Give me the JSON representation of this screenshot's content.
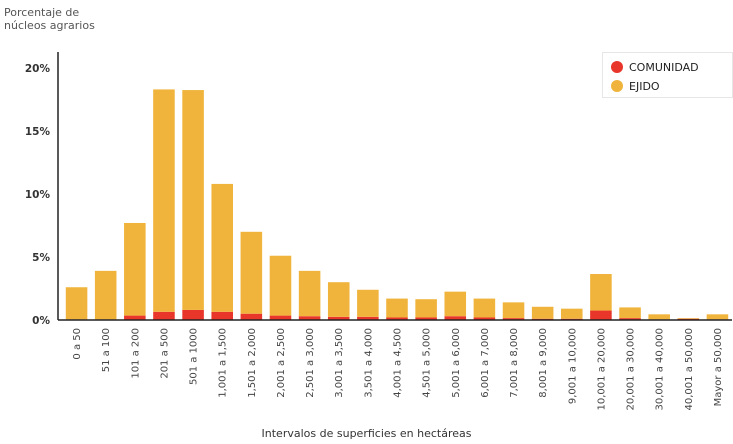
{
  "chart_data": {
    "type": "bar",
    "stacked": true,
    "ylabel": "Porcentaje de\nnúcleos agrarios",
    "xlabel": "Intervalos de superficies en hectáreas",
    "ylim": [
      0,
      20
    ],
    "yticks": [
      "0%",
      "5%",
      "10%",
      "15%",
      "20%"
    ],
    "ytick_values": [
      0,
      5,
      10,
      15,
      20
    ],
    "grid": false,
    "legend_position": "top-right",
    "categories": [
      "0 a 50",
      "51 a 100",
      "101 a 200",
      "201 a 500",
      "501 a 1000",
      "1,001 a 1,500",
      "1,501 a 2,000",
      "2,001 a 2,500",
      "2,501 a 3,000",
      "3,001 a 3,500",
      "3,501 a 4,000",
      "4,001 a 4,500",
      "4,501 a 5,000",
      "5,001 a 6,000",
      "6,001 a 7,000",
      "7,001 a 8,000",
      "8,001 a 9,000",
      "9,001 a 10,000",
      "10,001 a 20,000",
      "20,001 a 30,000",
      "30,001 a 40,000",
      "40,001 a 50,000",
      "Mayor a 50,000"
    ],
    "series": [
      {
        "name": "COMUNIDAD",
        "color": "#e8362a",
        "values": [
          0.05,
          0.05,
          0.35,
          0.65,
          0.8,
          0.65,
          0.5,
          0.35,
          0.3,
          0.25,
          0.25,
          0.2,
          0.2,
          0.3,
          0.2,
          0.15,
          0.1,
          0.1,
          0.75,
          0.15,
          0.05,
          0.1,
          0.05
        ]
      },
      {
        "name": "EJIDO",
        "color": "#f0b43c",
        "values": [
          2.55,
          3.85,
          7.35,
          17.65,
          17.45,
          10.15,
          6.5,
          4.75,
          3.6,
          2.75,
          2.15,
          1.5,
          1.45,
          1.95,
          1.5,
          1.25,
          0.95,
          0.8,
          2.9,
          0.85,
          0.4,
          0.05,
          0.4
        ]
      }
    ]
  }
}
